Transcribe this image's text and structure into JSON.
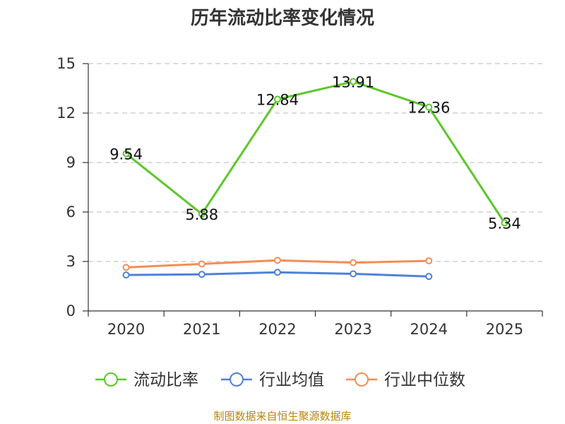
{
  "chart_data": {
    "type": "line",
    "title": "历年流动比率变化情况",
    "categories": [
      "2020",
      "2021",
      "2022",
      "2023",
      "2024",
      "2025"
    ],
    "ylim": [
      0,
      15
    ],
    "yticks": [
      "0",
      "3",
      "6",
      "9",
      "12",
      "15"
    ],
    "grid": "horizontal dashed",
    "legend_position": "bottom",
    "series": [
      {
        "name": "流动比率",
        "color": "#5cc72a",
        "values": [
          9.54,
          5.88,
          12.84,
          13.91,
          12.36,
          5.34
        ],
        "labels": [
          "9.54",
          "5.88",
          "12.84",
          "13.91",
          "12.36",
          "5.34"
        ]
      },
      {
        "name": "行业均值",
        "color": "#4f81d8",
        "values": [
          2.18,
          2.22,
          2.34,
          2.25,
          2.09,
          null
        ]
      },
      {
        "name": "行业中位数",
        "color": "#f58d57",
        "values": [
          2.64,
          2.85,
          3.07,
          2.93,
          3.04,
          null
        ]
      }
    ],
    "source": "制图数据来自恒生聚源数据库"
  }
}
